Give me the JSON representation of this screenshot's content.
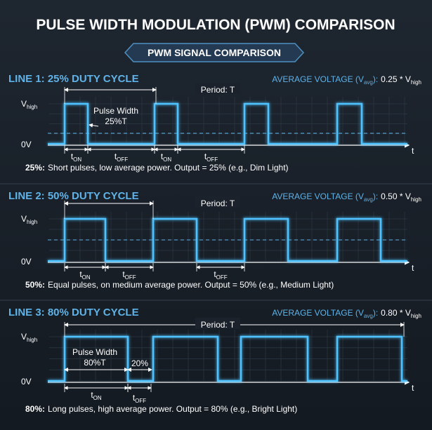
{
  "title": "PULSE WIDTH MODULATION (PWM) COMPARISON",
  "banner": "PWM SIGNAL COMPARISON",
  "panels": [
    {
      "heading": "LINE 1: 25% DUTY CYCLE",
      "period": "Period: T",
      "avg": {
        "label": "AVERAGE VOLTAGE (V",
        "label_sub": "avg",
        "label_end": "):",
        "value": "0.25 * V",
        "value_sub": "high"
      },
      "y_high": {
        "base": "V",
        "sub": "high"
      },
      "y_low": "0V",
      "x_axis": "t",
      "dims": [
        {
          "base": "t",
          "sub": "ON"
        },
        {
          "base": "t",
          "sub": "OFF"
        },
        {
          "base": "t",
          "sub": "ON"
        },
        {
          "base": "t",
          "sub": "OFF"
        }
      ],
      "pulse_width": [
        "Pulse Width",
        "25%T"
      ],
      "caption": {
        "bold": "25%:",
        "text": "Short pulses, low average power. Output = 25% (e.g., Dim Light)"
      }
    },
    {
      "heading": "LINE 2: 50% DUTY CYCLE",
      "period": "Period: T",
      "avg": {
        "label": "AVERAGE VOLTAGE (V",
        "label_sub": "avg",
        "label_end": "):",
        "value": "0.50 * V",
        "value_sub": "high"
      },
      "y_high": {
        "base": "V",
        "sub": "high"
      },
      "y_low": "0V",
      "x_axis": "t",
      "dims": [
        {
          "base": "t",
          "sub": "ON"
        },
        {
          "base": "t",
          "sub": "OFF"
        },
        {
          "base": "t",
          "sub": "OFF"
        }
      ],
      "caption": {
        "bold": "50%:",
        "text": "Equal pulses, on medium average power. Output = 50% (e.g., Medium Light)"
      }
    },
    {
      "heading": "LINE 3: 80% DUTY CYCLE",
      "period": "Period: T",
      "avg": {
        "label": "AVERAGE VOLTAGE (V",
        "label_sub": "avg",
        "label_end": "):",
        "value": "0.80 * V",
        "value_sub": "high"
      },
      "y_high": {
        "base": "V",
        "sub": "high"
      },
      "y_low": "0V",
      "x_axis": "t",
      "dims": [
        {
          "base": "t",
          "sub": "ON"
        },
        {
          "base": "t",
          "sub": "OFF"
        }
      ],
      "pulse_width": [
        "Pulse Width",
        "80%T"
      ],
      "off_pct": "20%",
      "caption": {
        "bold": "80%:",
        "text": "Long pulses, high average power.  Output = 80% (e.g., Bright Light)"
      }
    }
  ]
}
